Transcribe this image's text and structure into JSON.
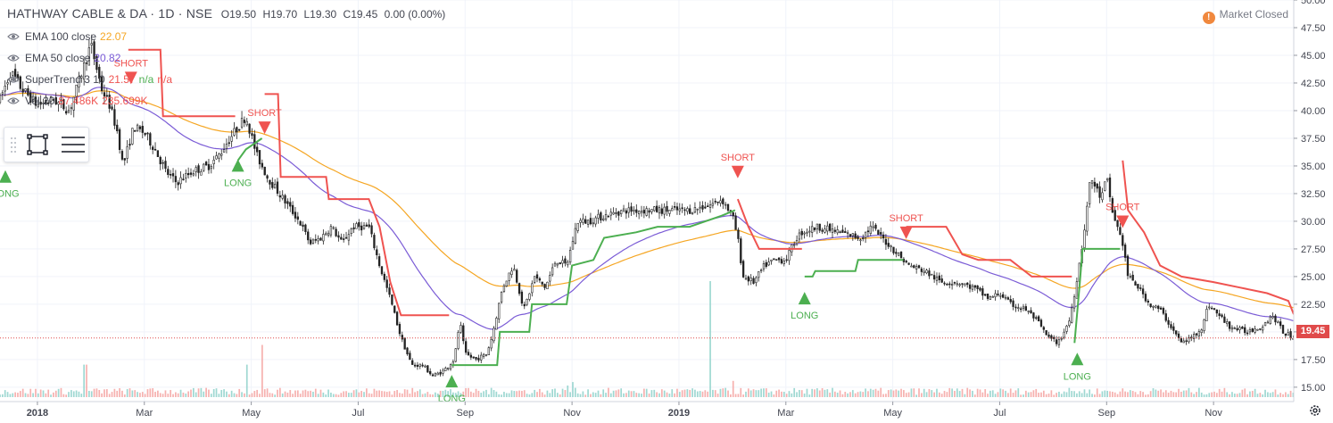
{
  "header": {
    "symbol": "HATHWAY CABLE & DA · 1D · NSE",
    "open": "O19.50",
    "high": "H19.70",
    "low": "L19.30",
    "close": "C19.45",
    "change": "0.00 (0.00%)"
  },
  "status": {
    "market": "Market Closed",
    "icon": "!"
  },
  "legend": [
    {
      "label": "EMA 100 close",
      "values": [
        "22.07"
      ],
      "color": "#f5a623"
    },
    {
      "label": "EMA 50 close",
      "values": [
        "20.82"
      ],
      "color": "#7b5cd6"
    },
    {
      "label": "SuperTrend 3 10",
      "values": [
        "21.57",
        "n/a",
        "n/a"
      ],
      "colors": [
        "#ef5350",
        "#4caf50",
        "#ef5350"
      ]
    },
    {
      "label": "Vol 20",
      "values": [
        "87.486K",
        "235.699K"
      ],
      "colors": [
        "#ef5350",
        "#ef5350"
      ]
    }
  ],
  "last_price": "19.45",
  "colors": {
    "up": "#26a69a",
    "down": "#ef5350",
    "st_up": "#4caf50",
    "st_down": "#ef5350",
    "ema100": "#f5a623",
    "ema50": "#7b5cd6"
  },
  "chart_data": {
    "type": "candlestick",
    "y_ticks": [
      "50.00",
      "47.50",
      "45.00",
      "42.50",
      "40.00",
      "37.50",
      "35.00",
      "32.50",
      "30.00",
      "27.50",
      "25.00",
      "22.50",
      "20.00",
      "17.50",
      "15.00"
    ],
    "ylim": [
      13.7,
      50.0
    ],
    "x_ticks": [
      "2018",
      "Mar",
      "May",
      "Jul",
      "Sep",
      "Nov",
      "2019",
      "Mar",
      "May",
      "Jul",
      "Sep",
      "Nov"
    ],
    "x_tick_months": [
      0,
      2,
      4,
      6,
      8,
      10,
      12,
      14,
      16,
      18,
      20,
      22
    ],
    "xlim_months": [
      -0.7,
      23.5
    ],
    "price_anchors": [
      [
        -0.7,
        41.0
      ],
      [
        -0.5,
        43.5
      ],
      [
        -0.3,
        42.0
      ],
      [
        0.0,
        40.5
      ],
      [
        0.3,
        41.0
      ],
      [
        0.6,
        40.0
      ],
      [
        0.9,
        44.5
      ],
      [
        1.0,
        46.0
      ],
      [
        1.2,
        42.0
      ],
      [
        1.35,
        40.5
      ],
      [
        1.5,
        38.0
      ],
      [
        1.6,
        35.0
      ],
      [
        1.8,
        38.5
      ],
      [
        2.0,
        38.0
      ],
      [
        2.2,
        36.5
      ],
      [
        2.4,
        34.5
      ],
      [
        2.6,
        33.5
      ],
      [
        2.9,
        34.5
      ],
      [
        3.2,
        35.0
      ],
      [
        3.4,
        36.0
      ],
      [
        3.6,
        37.5
      ],
      [
        3.9,
        39.5
      ],
      [
        4.1,
        36.0
      ],
      [
        4.3,
        34.0
      ],
      [
        4.6,
        32.0
      ],
      [
        4.9,
        30.0
      ],
      [
        5.1,
        28.0
      ],
      [
        5.3,
        28.5
      ],
      [
        5.5,
        29.5
      ],
      [
        5.7,
        28.0
      ],
      [
        5.9,
        29.5
      ],
      [
        6.2,
        29.5
      ],
      [
        6.4,
        26.0
      ],
      [
        6.6,
        23.0
      ],
      [
        6.8,
        19.5
      ],
      [
        7.0,
        17.0
      ],
      [
        7.2,
        17.0
      ],
      [
        7.4,
        16.0
      ],
      [
        7.6,
        16.5
      ],
      [
        7.8,
        17.5
      ],
      [
        7.9,
        21.0
      ],
      [
        8.0,
        18.0
      ],
      [
        8.2,
        17.5
      ],
      [
        8.4,
        18.0
      ],
      [
        8.5,
        19.5
      ],
      [
        8.7,
        24.0
      ],
      [
        8.9,
        26.0
      ],
      [
        9.1,
        22.0
      ],
      [
        9.3,
        25.0
      ],
      [
        9.5,
        24.0
      ],
      [
        9.7,
        26.5
      ],
      [
        9.9,
        26.0
      ],
      [
        10.1,
        30.0
      ],
      [
        10.3,
        30.0
      ],
      [
        10.6,
        30.5
      ],
      [
        11.0,
        31.0
      ],
      [
        11.4,
        31.0
      ],
      [
        11.8,
        31.0
      ],
      [
        12.2,
        31.0
      ],
      [
        12.6,
        31.5
      ],
      [
        12.8,
        32.0
      ],
      [
        13.0,
        30.5
      ],
      [
        13.1,
        28.5
      ],
      [
        13.2,
        25.0
      ],
      [
        13.4,
        24.5
      ],
      [
        13.6,
        26.0
      ],
      [
        13.8,
        26.5
      ],
      [
        14.0,
        26.5
      ],
      [
        14.2,
        28.5
      ],
      [
        14.3,
        29.0
      ],
      [
        14.6,
        29.5
      ],
      [
        15.0,
        29.0
      ],
      [
        15.4,
        28.5
      ],
      [
        15.6,
        29.5
      ],
      [
        15.9,
        28.0
      ],
      [
        16.1,
        27.0
      ],
      [
        16.3,
        26.0
      ],
      [
        16.6,
        25.5
      ],
      [
        16.9,
        24.5
      ],
      [
        17.2,
        24.5
      ],
      [
        17.5,
        24.0
      ],
      [
        17.8,
        23.0
      ],
      [
        18.0,
        23.5
      ],
      [
        18.2,
        22.5
      ],
      [
        18.5,
        22.0
      ],
      [
        18.7,
        21.0
      ],
      [
        18.9,
        19.5
      ],
      [
        19.1,
        19.0
      ],
      [
        19.3,
        21.0
      ],
      [
        19.4,
        23.5
      ],
      [
        19.55,
        28.0
      ],
      [
        19.7,
        34.0
      ],
      [
        19.9,
        32.0
      ],
      [
        20.0,
        34.0
      ],
      [
        20.1,
        31.0
      ],
      [
        20.3,
        28.0
      ],
      [
        20.4,
        25.0
      ],
      [
        20.6,
        24.0
      ],
      [
        20.8,
        22.5
      ],
      [
        21.0,
        22.0
      ],
      [
        21.2,
        20.5
      ],
      [
        21.4,
        19.0
      ],
      [
        21.6,
        19.5
      ],
      [
        21.8,
        20.5
      ],
      [
        21.9,
        22.5
      ],
      [
        22.1,
        21.5
      ],
      [
        22.3,
        20.5
      ],
      [
        22.6,
        20.0
      ],
      [
        22.9,
        20.5
      ],
      [
        23.1,
        21.5
      ],
      [
        23.3,
        20.0
      ],
      [
        23.5,
        19.45
      ]
    ],
    "supertrend_segments": [
      {
        "trend": "down",
        "points": [
          [
            1.7,
            45.5
          ],
          [
            2.3,
            45.5
          ],
          [
            2.35,
            39.5
          ],
          [
            3.7,
            39.5
          ]
        ]
      },
      {
        "trend": "up",
        "points": [
          [
            3.75,
            35.5
          ],
          [
            3.9,
            36.5
          ],
          [
            4.2,
            37.5
          ]
        ]
      },
      {
        "trend": "down",
        "points": [
          [
            4.25,
            41.5
          ],
          [
            4.5,
            41.5
          ],
          [
            4.55,
            34.0
          ],
          [
            5.4,
            34.0
          ],
          [
            5.45,
            32.0
          ],
          [
            6.2,
            32.0
          ],
          [
            6.4,
            29.5
          ],
          [
            6.6,
            24.5
          ],
          [
            6.8,
            21.5
          ],
          [
            7.7,
            21.5
          ]
        ]
      },
      {
        "trend": "up",
        "points": [
          [
            7.75,
            17.0
          ],
          [
            8.6,
            17.0
          ],
          [
            8.65,
            20.0
          ],
          [
            9.2,
            20.0
          ],
          [
            9.25,
            22.5
          ],
          [
            9.9,
            22.5
          ],
          [
            10.0,
            26.0
          ],
          [
            10.4,
            26.5
          ],
          [
            10.6,
            28.5
          ],
          [
            11.2,
            29.0
          ],
          [
            11.6,
            29.5
          ],
          [
            12.2,
            29.5
          ],
          [
            12.8,
            30.5
          ],
          [
            13.05,
            31.0
          ]
        ]
      },
      {
        "trend": "down",
        "points": [
          [
            13.1,
            32.0
          ],
          [
            13.3,
            29.5
          ],
          [
            13.5,
            27.5
          ],
          [
            14.3,
            27.5
          ]
        ]
      },
      {
        "trend": "up",
        "points": [
          [
            14.35,
            25.0
          ],
          [
            14.5,
            25.0
          ],
          [
            14.55,
            25.5
          ],
          [
            15.3,
            25.5
          ],
          [
            15.35,
            26.5
          ],
          [
            16.2,
            26.5
          ]
        ]
      },
      {
        "trend": "down",
        "points": [
          [
            16.25,
            29.5
          ],
          [
            17.0,
            29.5
          ],
          [
            17.3,
            27.0
          ],
          [
            17.6,
            26.5
          ],
          [
            18.2,
            26.5
          ],
          [
            18.6,
            25.0
          ],
          [
            19.35,
            25.0
          ]
        ]
      },
      {
        "trend": "up",
        "points": [
          [
            19.4,
            19.0
          ],
          [
            19.5,
            24.5
          ],
          [
            19.55,
            27.5
          ],
          [
            20.25,
            27.5
          ]
        ]
      },
      {
        "trend": "down",
        "points": [
          [
            20.3,
            35.5
          ],
          [
            20.4,
            31.0
          ],
          [
            20.7,
            29.0
          ],
          [
            21.0,
            26.0
          ],
          [
            21.4,
            25.0
          ],
          [
            22.0,
            24.5
          ],
          [
            22.5,
            24.0
          ],
          [
            23.0,
            23.5
          ],
          [
            23.4,
            22.8
          ],
          [
            23.5,
            21.6
          ]
        ]
      }
    ],
    "signals": [
      {
        "type": "SHORT",
        "month": 1.75,
        "price": 44.0
      },
      {
        "type": "LONG",
        "month": 3.75,
        "price": 34.0
      },
      {
        "type": "SHORT",
        "month": 4.25,
        "price": 39.5
      },
      {
        "type": "LONG",
        "month": -0.6,
        "price": 33.0
      },
      {
        "type": "LONG",
        "month": 7.75,
        "price": 14.5
      },
      {
        "type": "SHORT",
        "month": 13.1,
        "price": 35.5
      },
      {
        "type": "LONG",
        "month": 14.35,
        "price": 22.0
      },
      {
        "type": "SHORT",
        "month": 16.25,
        "price": 30.0
      },
      {
        "type": "LONG",
        "month": 19.45,
        "price": 16.5
      },
      {
        "type": "SHORT",
        "month": 20.3,
        "price": 31.0
      }
    ],
    "volume_spikes": [
      {
        "month": 0.9,
        "level": 0.28,
        "up": true
      },
      {
        "month": 3.9,
        "level": 0.28,
        "up": false
      },
      {
        "month": 4.2,
        "level": 0.45,
        "up": false
      },
      {
        "month": 9.9,
        "level": 0.1,
        "up": false
      },
      {
        "month": 10.0,
        "level": 0.13,
        "up": false
      },
      {
        "month": 12.6,
        "level": 1.0,
        "up": true
      },
      {
        "month": 13.0,
        "level": 0.14,
        "up": false
      }
    ]
  }
}
